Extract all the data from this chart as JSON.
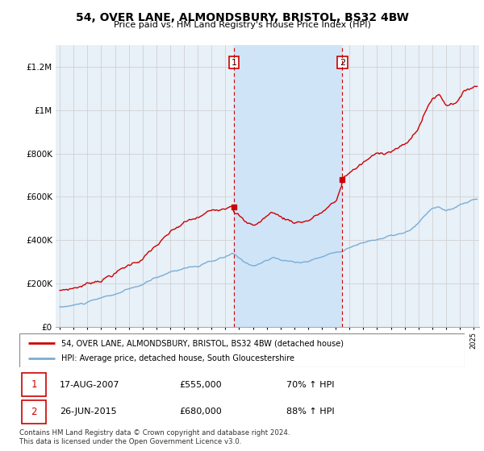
{
  "title": "54, OVER LANE, ALMONDSBURY, BRISTOL, BS32 4BW",
  "subtitle": "Price paid vs. HM Land Registry's House Price Index (HPI)",
  "legend_line1": "54, OVER LANE, ALMONDSBURY, BRISTOL, BS32 4BW (detached house)",
  "legend_line2": "HPI: Average price, detached house, South Gloucestershire",
  "footnote": "Contains HM Land Registry data © Crown copyright and database right 2024.\nThis data is licensed under the Open Government Licence v3.0.",
  "sale1_date": "17-AUG-2007",
  "sale1_price": "£555,000",
  "sale1_hpi": "70% ↑ HPI",
  "sale2_date": "26-JUN-2015",
  "sale2_price": "£680,000",
  "sale2_hpi": "88% ↑ HPI",
  "price_line_color": "#cc0000",
  "hpi_line_color": "#7aadd4",
  "background_plot": "#e8f0f8",
  "background_highlight": "#d0e4f7",
  "ylim": [
    0,
    1300000
  ],
  "yticks": [
    0,
    200000,
    400000,
    600000,
    800000,
    1000000,
    1200000
  ],
  "ytick_labels": [
    "£0",
    "£200K",
    "£400K",
    "£600K",
    "£800K",
    "£1M",
    "£1.2M"
  ],
  "sale1_x": 2007.63,
  "sale1_y": 555000,
  "sale2_x": 2015.48,
  "sale2_y": 680000,
  "xmin": 1995.0,
  "xmax": 2025.3
}
